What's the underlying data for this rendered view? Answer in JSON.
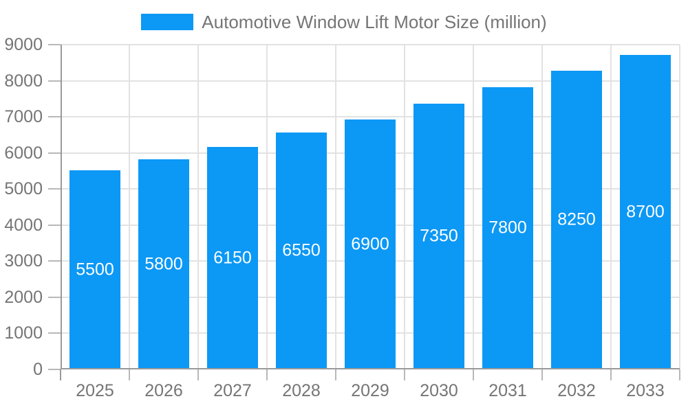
{
  "legend": {
    "label": "Automotive Window Lift Motor Size (million)"
  },
  "colors": {
    "bar": "#0c98f5",
    "bar_label": "#ffffff",
    "axis_line": "#999999",
    "grid_line": "#e2e2e2",
    "tick": "#b8b8b8",
    "text": "#757575",
    "background": "#ffffff"
  },
  "chart_data": {
    "type": "bar",
    "title": "Automotive Window Lift Motor Size (million)",
    "categories": [
      "2025",
      "2026",
      "2027",
      "2028",
      "2029",
      "2030",
      "2031",
      "2032",
      "2033"
    ],
    "values": [
      5500,
      5800,
      6150,
      6550,
      6900,
      7350,
      7800,
      8250,
      8700
    ],
    "series": [
      {
        "name": "Automotive Window Lift Motor Size (million)",
        "values": [
          5500,
          5800,
          6150,
          6550,
          6900,
          7350,
          7800,
          8250,
          8700
        ]
      }
    ],
    "bar_value_labels": [
      "5500",
      "5800",
      "6150",
      "6550",
      "6900",
      "7350",
      "7800",
      "8250",
      "8700"
    ],
    "xlabel": "",
    "ylabel": "",
    "ylim": [
      0,
      9000
    ],
    "ytick_interval": 1000,
    "y_tick_labels": [
      "0",
      "1000",
      "2000",
      "3000",
      "4000",
      "5000",
      "6000",
      "7000",
      "8000",
      "9000"
    ],
    "grid": "on",
    "legend_position": "top-center",
    "bar_label_position": "center-inside"
  }
}
